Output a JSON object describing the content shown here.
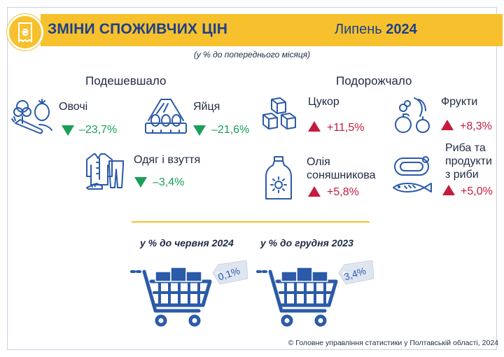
{
  "header": {
    "title": "ЗМІНИ СПОЖИВЧИХ ЦІН",
    "period_month": "Липень",
    "period_year": "2024",
    "logo_icon": "receipt-hryvnia-icon"
  },
  "subtitle": "(у % до попереднього місяця)",
  "cheaper": {
    "heading": "Подешевшало",
    "items": [
      {
        "label": "Овочі",
        "value": "–23,7%",
        "icon": "vegetables-icon"
      },
      {
        "label": "Яйця",
        "value": "–21,6%",
        "icon": "eggs-icon"
      },
      {
        "label": "Одяг і взуття",
        "value": "–3,4%",
        "icon": "clothing-shoes-icon"
      }
    ]
  },
  "pricier": {
    "heading": "Подорожчало",
    "items": [
      {
        "label": "Цукор",
        "value": "+11,5%",
        "icon": "sugar-cubes-icon"
      },
      {
        "label": "Фрукти",
        "value": "+8,3%",
        "icon": "fruits-icon"
      },
      {
        "label_line1": "Олія",
        "label_line2": "соняшникова",
        "value": "+5,8%",
        "icon": "sunflower-oil-icon"
      },
      {
        "label_line1": "Риба та",
        "label_line2": "продукти",
        "label_line3": "з риби",
        "value": "+5,0%",
        "icon": "fish-icon"
      }
    ]
  },
  "comparisons": [
    {
      "caption": "у % до червня 2024",
      "value": "0,1%",
      "icon": "shopping-cart-icon"
    },
    {
      "caption": "у % до грудня 2023",
      "value": "3,4%",
      "icon": "shopping-cart-icon"
    }
  ],
  "footer": "© Головне управління статистики у Полтавській області, 2024",
  "colors": {
    "accent": "#f6c12c",
    "title": "#1d3f8c",
    "icon": "#2b5aa8",
    "down": "#18a058",
    "up": "#c51c3f"
  }
}
